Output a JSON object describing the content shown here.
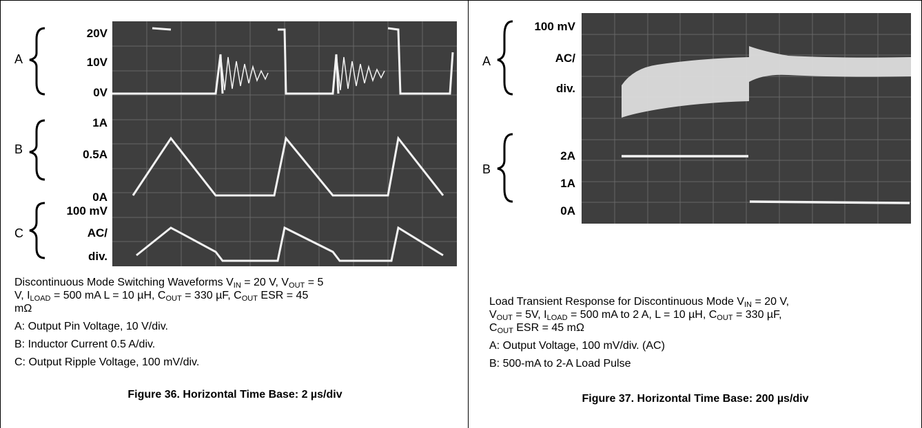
{
  "fig36": {
    "ch_a": {
      "letter": "A",
      "labels": [
        "20V",
        "10V",
        "0V"
      ]
    },
    "ch_b": {
      "letter": "B",
      "labels": [
        "1A",
        "0.5A",
        "0A"
      ]
    },
    "ch_c": {
      "letter": "C",
      "labels": [
        "100 mV",
        "AC/",
        "div."
      ]
    },
    "caption": {
      "line1_a": "Discontinuous Mode Switching Waveforms V",
      "vin_sub": "IN",
      "line1_b": " = 20 V, V",
      "vout_sub": "OUT",
      "line1_c": " = 5",
      "line2_a": "V, I",
      "iload_sub": "LOAD",
      "line2_b": " = 500 mA L = 10 µH, C",
      "cout_sub": "OUT",
      "line2_c": " = 330 µF, C",
      "cout_sub2": "OUT",
      "line2_d": " ESR = 45",
      "line3": "mΩ",
      "item_a": "A: Output Pin Voltage, 10 V/div.",
      "item_b": "B: Inductor Current 0.5 A/div.",
      "item_c": "C: Output Ripple Voltage, 100 mV/div."
    },
    "title": "Figure 36. Horizontal Time Base: 2 µs/div"
  },
  "fig37": {
    "ch_a": {
      "letter": "A",
      "labels": [
        "100 mV",
        "AC/",
        "div."
      ]
    },
    "ch_b": {
      "letter": "B",
      "labels": [
        "2A",
        "1A",
        "0A"
      ]
    },
    "caption": {
      "line1_a": "Load Transient Response for Discontinuous Mode V",
      "vin_sub": "IN",
      "line1_b": " = 20 V,",
      "line2_a": "V",
      "vout_sub": "OUT",
      "line2_b": " = 5V, I",
      "iload_sub": "LOAD",
      "line2_c": " = 500 mA to 2 A, L = 10 µH, C",
      "cout_sub": "OUT",
      "line2_d": " = 330 µF,",
      "line3_a": "C",
      "cout_sub2": "OUT",
      "line3_b": " ESR = 45 mΩ",
      "item_a": "A: Output Voltage, 100 mV/div. (AC)",
      "item_b": "B: 500-mA to 2-A Load Pulse"
    },
    "title": "Figure 37. Horizontal Time Base: 200 µs/div"
  },
  "colors": {
    "scope_bg": "#3e3e3e",
    "trace": "#f2f2f2",
    "grid": "#8a8a8a"
  }
}
